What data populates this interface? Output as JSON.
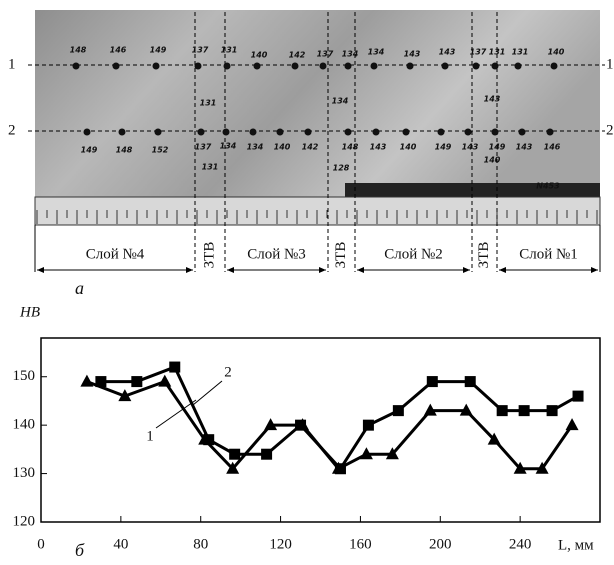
{
  "figure_a": {
    "caption": "а",
    "row_labels": [
      "1",
      "2"
    ],
    "layers": [
      "Слой №4",
      "ЗТВ",
      "Слой №3",
      "ЗТВ",
      "Слой №2",
      "ЗТВ",
      "Слой №1"
    ],
    "annotations": [
      "148",
      "146",
      "149",
      "137",
      "131",
      "140",
      "142",
      "137",
      "134",
      "134",
      "143",
      "143",
      "137",
      "131",
      "131",
      "140",
      "149",
      "148",
      "152",
      "137",
      "134",
      "134",
      "140",
      "142",
      "148",
      "143",
      "140",
      "149",
      "143",
      "149",
      "143",
      "146",
      "131",
      "131",
      "134",
      "128",
      "143",
      "140",
      "N453"
    ]
  },
  "chart_data": {
    "type": "line",
    "caption": "б",
    "ylabel": "HB",
    "xlabel": "L, мм",
    "xlim": [
      0,
      280
    ],
    "xticks": [
      0,
      40,
      80,
      120,
      160,
      200,
      240
    ],
    "ylim": [
      120,
      158
    ],
    "yticks": [
      120,
      130,
      140,
      150
    ],
    "series": [
      {
        "name": "1",
        "color": "#000000",
        "marker": "triangle",
        "x": [
          23,
          42,
          62,
          82,
          96,
          115,
          131,
          149,
          163,
          176,
          195,
          213,
          227,
          240,
          251,
          266
        ],
        "values": [
          149,
          146,
          149,
          137,
          131,
          140,
          140,
          131,
          134,
          134,
          143,
          143,
          137,
          131,
          131,
          140
        ]
      },
      {
        "name": "2",
        "color": "#000000",
        "marker": "square",
        "x": [
          30,
          48,
          67,
          84,
          97,
          113,
          130,
          150,
          164,
          179,
          196,
          215,
          231,
          242,
          256,
          269
        ],
        "values": [
          149,
          149,
          152,
          137,
          134,
          134,
          140,
          131,
          140,
          143,
          149,
          149,
          143,
          143,
          143,
          146
        ]
      }
    ]
  }
}
